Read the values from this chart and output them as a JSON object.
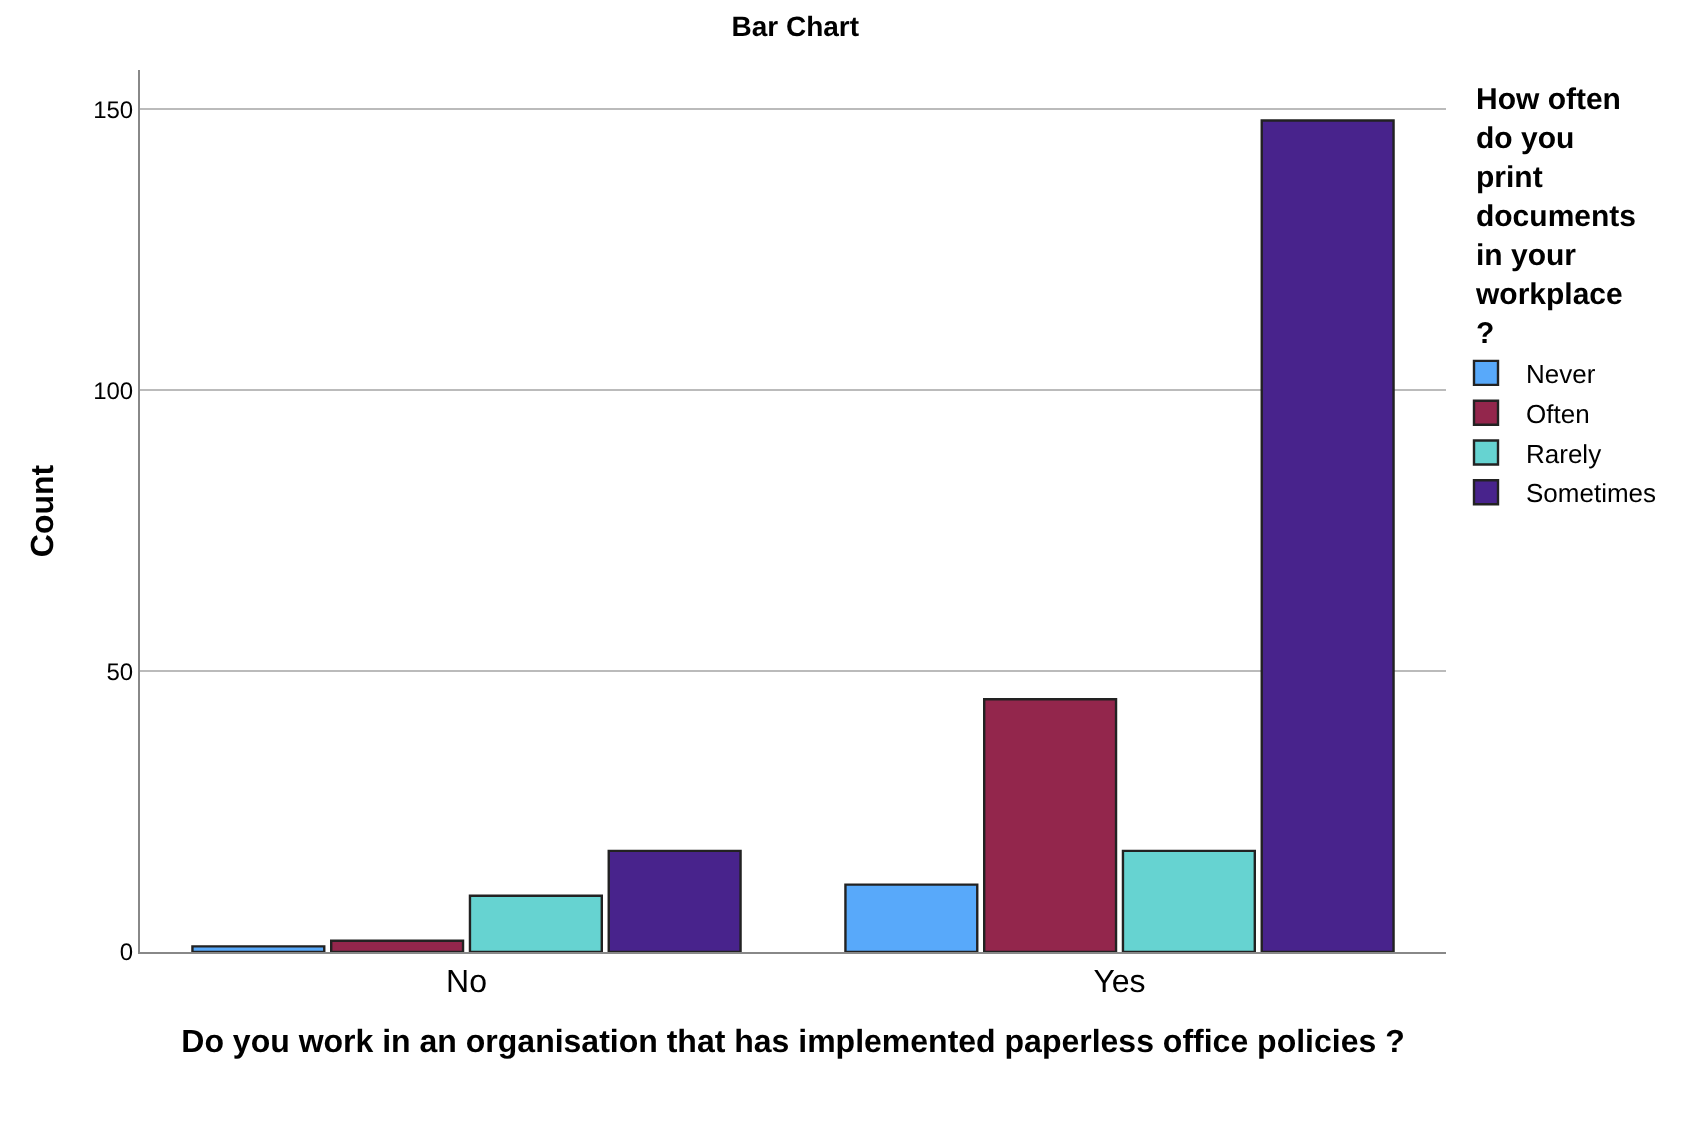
{
  "chart_data": {
    "type": "bar",
    "title": "Bar Chart",
    "xlabel": "Do you work in an organisation that has implemented paperless office policies ?",
    "ylabel": "Count",
    "legend_title": "How often do you print documents in your workplace ?",
    "categories": [
      "No",
      "Yes"
    ],
    "series": [
      {
        "name": "Never",
        "color": "#58a9fa",
        "values": [
          1,
          12
        ]
      },
      {
        "name": "Often",
        "color": "#93264c",
        "values": [
          2,
          45
        ]
      },
      {
        "name": "Rarely",
        "color": "#66d3d1",
        "values": [
          10,
          18
        ]
      },
      {
        "name": "Sometimes",
        "color": "#48238c",
        "values": [
          18,
          148
        ]
      }
    ],
    "ylim": [
      0,
      157
    ],
    "yticks": [
      0,
      50,
      100,
      150
    ],
    "grid": "y",
    "legend": "right"
  }
}
